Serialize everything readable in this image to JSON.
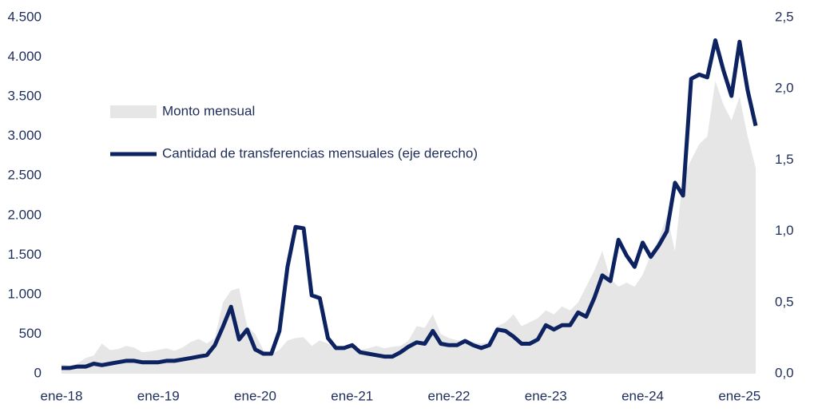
{
  "chart_data": {
    "type": "area-line",
    "categories": [
      "ene-18",
      null,
      null,
      null,
      null,
      null,
      null,
      null,
      null,
      null,
      null,
      null,
      "ene-19",
      null,
      null,
      null,
      null,
      null,
      null,
      null,
      null,
      null,
      null,
      null,
      "ene-20",
      null,
      null,
      null,
      null,
      null,
      null,
      null,
      null,
      null,
      null,
      null,
      "ene-21",
      null,
      null,
      null,
      null,
      null,
      null,
      null,
      null,
      null,
      null,
      null,
      "ene-22",
      null,
      null,
      null,
      null,
      null,
      null,
      null,
      null,
      null,
      null,
      null,
      "ene-23",
      null,
      null,
      null,
      null,
      null,
      null,
      null,
      null,
      null,
      null,
      null,
      "ene-24",
      null,
      null,
      null,
      null,
      null,
      null,
      null,
      null,
      null,
      null,
      null,
      "ene-25",
      null,
      null
    ],
    "series": [
      {
        "name": "Monto mensual",
        "color": "#e6e6e6",
        "values": [
          120,
          100,
          130,
          200,
          230,
          380,
          300,
          310,
          350,
          330,
          270,
          280,
          300,
          320,
          290,
          330,
          400,
          440,
          380,
          450,
          900,
          1050,
          1080,
          600,
          500,
          300,
          250,
          300,
          420,
          450,
          460,
          350,
          420,
          380,
          300,
          300,
          330,
          300,
          320,
          350,
          320,
          340,
          350,
          420,
          600,
          580,
          750,
          500,
          450,
          420,
          420,
          400,
          380,
          400,
          600,
          650,
          750,
          600,
          650,
          700,
          800,
          750,
          850,
          800,
          900,
          1100,
          1300,
          1550,
          1200,
          1100,
          1150,
          1100,
          1250,
          1500,
          1700,
          2000,
          1550,
          2500,
          2700,
          2900,
          3000,
          3700,
          3400,
          3200,
          3500,
          3000,
          2600
        ]
      },
      {
        "name": "Cantidad de transferencias mensuales (eje derecho)",
        "color": "#0d2261",
        "axis": "y2",
        "values": [
          0.04,
          0.04,
          0.05,
          0.05,
          0.07,
          0.06,
          0.07,
          0.08,
          0.09,
          0.09,
          0.08,
          0.08,
          0.08,
          0.09,
          0.09,
          0.1,
          0.11,
          0.12,
          0.13,
          0.2,
          0.33,
          0.47,
          0.24,
          0.31,
          0.17,
          0.14,
          0.14,
          0.3,
          0.75,
          1.03,
          1.02,
          0.55,
          0.53,
          0.25,
          0.18,
          0.18,
          0.2,
          0.15,
          0.14,
          0.13,
          0.12,
          0.12,
          0.15,
          0.19,
          0.22,
          0.21,
          0.3,
          0.21,
          0.2,
          0.2,
          0.23,
          0.2,
          0.18,
          0.2,
          0.31,
          0.3,
          0.26,
          0.21,
          0.21,
          0.24,
          0.34,
          0.31,
          0.34,
          0.34,
          0.43,
          0.4,
          0.53,
          0.69,
          0.65,
          0.94,
          0.83,
          0.75,
          0.92,
          0.82,
          0.9,
          1.0,
          1.34,
          1.25,
          2.07,
          2.1,
          2.08,
          2.34,
          2.13,
          1.95,
          2.33,
          1.99,
          1.74
        ]
      }
    ],
    "ylim": [
      0,
      4500
    ],
    "yticks": [
      0,
      500,
      {
        "value": 1000,
        "label": "1.000"
      },
      {
        "value": 1500,
        "label": "1.500"
      },
      {
        "value": 2000,
        "label": "2.000"
      },
      {
        "value": 2500,
        "label": "2.500"
      },
      {
        "value": 3000,
        "label": "3.000"
      },
      {
        "value": 3500,
        "label": "3.500"
      },
      {
        "value": 4000,
        "label": "4.000"
      },
      {
        "value": 4500,
        "label": "4.500"
      }
    ],
    "y2lim": [
      0,
      2.5
    ],
    "y2ticks": [
      {
        "value": 0,
        "label": "0,0"
      },
      {
        "value": 0.5,
        "label": "0,5"
      },
      {
        "value": 1,
        "label": "1,0"
      },
      {
        "value": 1.5,
        "label": "1,5"
      },
      {
        "value": 2,
        "label": "2,0"
      },
      {
        "value": 2.5,
        "label": "2,5"
      }
    ]
  }
}
